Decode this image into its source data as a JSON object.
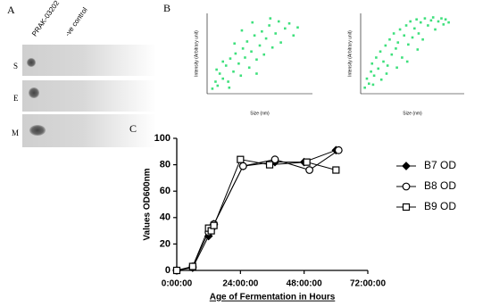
{
  "panel_a": {
    "label": "A",
    "columns": [
      "PRAK-03202",
      "-ve control"
    ],
    "rows": [
      "S",
      "E",
      "M"
    ]
  },
  "chart_data": [
    {
      "type": "scatter",
      "panel_label": "B",
      "x_label": "Size (nm)",
      "y_label": "Intensity (Arbitrary unit)",
      "color": "#3ee07c",
      "xlim": [
        0,
        1000
      ],
      "ylim": [
        0,
        8
      ],
      "series": [
        {
          "x": [
            50,
            80,
            100,
            120,
            150,
            180,
            200,
            220,
            250,
            270,
            300,
            320,
            340,
            360,
            380,
            400,
            420,
            450,
            470,
            500,
            520,
            540,
            560,
            590,
            620,
            650,
            680,
            700,
            740,
            780,
            820,
            860,
            150,
            260,
            90,
            330,
            430,
            600,
            210,
            470
          ],
          "values": [
            0.5,
            1.2,
            0.8,
            2,
            1.5,
            2.8,
            1.2,
            3.5,
            2.2,
            4,
            3,
            1.8,
            4.5,
            3.6,
            5.2,
            2.6,
            4.2,
            5.8,
            3.4,
            4.8,
            6.2,
            3.9,
            5.5,
            6.8,
            4.6,
            6,
            7.2,
            5.1,
            6.5,
            7,
            5.8,
            6.6,
            3.2,
            5,
            2.4,
            6.3,
            7.1,
            7.5,
            0.6,
            2
          ]
        }
      ]
    },
    {
      "type": "scatter",
      "x_label": "Size (nm)",
      "y_label": "Intensity (Arbitrary unit)",
      "color": "#3ee07c",
      "xlim": [
        0,
        1000
      ],
      "ylim": [
        0,
        8
      ],
      "series": [
        {
          "x": [
            40,
            60,
            80,
            100,
            110,
            130,
            150,
            170,
            190,
            200,
            220,
            240,
            260,
            280,
            300,
            320,
            340,
            360,
            380,
            400,
            420,
            440,
            460,
            480,
            500,
            520,
            540,
            560,
            580,
            600,
            620,
            650,
            680,
            700,
            720,
            750,
            780,
            800,
            820,
            850,
            120,
            250,
            350,
            450,
            550
          ],
          "values": [
            0.6,
            1.5,
            1,
            2.2,
            3,
            1.8,
            3.6,
            2.5,
            4.2,
            1.4,
            3.2,
            4.8,
            2.8,
            5.4,
            3.9,
            6,
            4.5,
            5.1,
            6.4,
            3.6,
            5.8,
            6.8,
            4.9,
            7.2,
            5.6,
            6.5,
            7.4,
            6,
            7.1,
            5.4,
            7.5,
            6.8,
            7.3,
            7.6,
            6.4,
            7.2,
            7.5,
            6.9,
            7.4,
            7.1,
            0.9,
            2,
            2.6,
            3.2,
            4.4
          ]
        }
      ]
    },
    {
      "type": "line",
      "panel_label": "C",
      "x_label": "Age of Fermentation in Hours",
      "y_label": "Values OD600nm",
      "xlim": [
        0,
        72
      ],
      "ylim": [
        0,
        100
      ],
      "xticks": [
        {
          "value": 0,
          "label": "0:00:00"
        },
        {
          "value": 24,
          "label": "24:00:00"
        },
        {
          "value": 48,
          "label": "48:00:00"
        },
        {
          "value": 72,
          "label": "72:00:00"
        }
      ],
      "yticks": [
        0,
        20,
        40,
        60,
        80,
        100
      ],
      "series": [
        {
          "name": "B7 OD",
          "marker": "diamond",
          "color": "#000000",
          "x": [
            0,
            6,
            12,
            13,
            14,
            25,
            37,
            48,
            60
          ],
          "values": [
            0,
            2,
            26,
            31,
            35,
            79,
            82,
            82,
            91
          ]
        },
        {
          "name": "B8 OD",
          "marker": "circle",
          "color": "#000000",
          "x": [
            0,
            6,
            12,
            13,
            14,
            25,
            37,
            50,
            61
          ],
          "values": [
            0,
            3,
            29,
            32,
            35,
            79,
            84,
            76,
            91
          ]
        },
        {
          "name": "B9 OD",
          "marker": "square",
          "color": "#000000",
          "x": [
            0,
            6,
            12,
            13,
            14,
            24,
            35,
            49,
            60
          ],
          "values": [
            0,
            3,
            32,
            30,
            34,
            84,
            80,
            82,
            76
          ]
        }
      ]
    }
  ]
}
